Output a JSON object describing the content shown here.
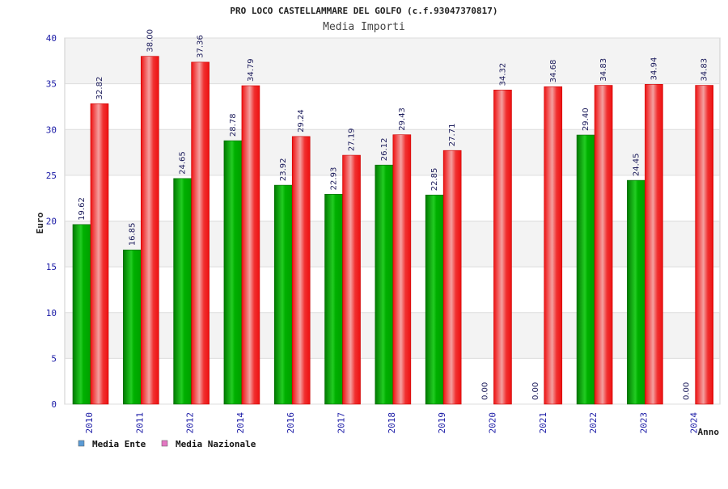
{
  "chart_data": {
    "type": "bar",
    "title": "PRO LOCO CASTELLAMMARE DEL GOLFO (c.f.93047370817)",
    "subtitle": "Media Importi",
    "xlabel": "Anno",
    "ylabel": "Euro",
    "ylim": [
      0,
      40
    ],
    "yticks": [
      0,
      5,
      10,
      15,
      20,
      25,
      30,
      35,
      40
    ],
    "grid": true,
    "legend_position": "bottom-left",
    "categories": [
      "2010",
      "2011",
      "2012",
      "2014",
      "2016",
      "2017",
      "2018",
      "2019",
      "2020",
      "2021",
      "2022",
      "2023",
      "2024"
    ],
    "series": [
      {
        "name": "Media Ente",
        "color": "#00aa00",
        "legend_color": "#5b9bd5",
        "values": [
          19.62,
          16.85,
          24.65,
          28.78,
          23.92,
          22.93,
          26.12,
          22.85,
          0.0,
          0.0,
          29.4,
          24.45,
          0.0
        ],
        "labels": [
          "19.62",
          "16.85",
          "24.65",
          "28.78",
          "23.92",
          "22.93",
          "26.12",
          "22.85",
          "0.00",
          "0.00",
          "29.40",
          "24.45",
          "0.00"
        ]
      },
      {
        "name": "Media Nazionale",
        "color": "#ee1111",
        "legend_color": "#e377c2",
        "values": [
          32.82,
          38.0,
          37.36,
          34.79,
          29.24,
          27.19,
          29.43,
          27.71,
          34.32,
          34.68,
          34.83,
          34.94,
          34.83
        ],
        "labels": [
          "32.82",
          "38.00",
          "37.36",
          "34.79",
          "29.24",
          "27.19",
          "29.43",
          "27.71",
          "34.32",
          "34.68",
          "34.83",
          "34.94",
          "34.83"
        ]
      }
    ]
  }
}
